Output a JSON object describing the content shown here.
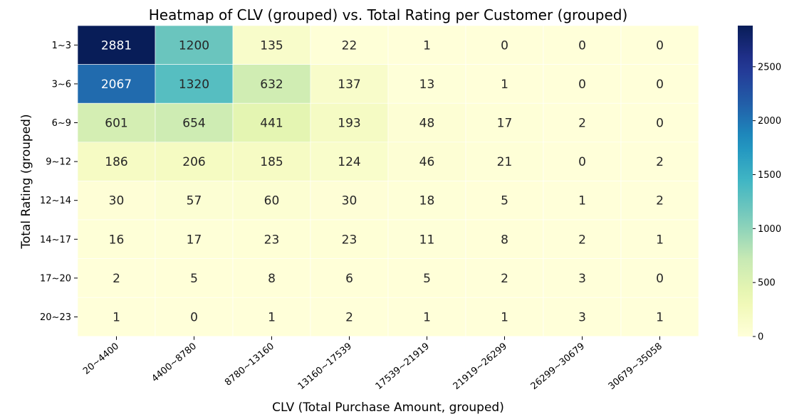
{
  "chart_data": {
    "type": "heatmap",
    "title": "Heatmap of CLV (grouped) vs. Total Rating per Customer (grouped)",
    "xlabel": "CLV (Total Purchase Amount, grouped)",
    "ylabel": "Total Rating (grouped)",
    "x_categories": [
      "20~4400",
      "4400~8780",
      "8780~13160",
      "13160~17539",
      "17539~21919",
      "21919~26299",
      "26299~30679",
      "30679~35058"
    ],
    "y_categories": [
      "1~3",
      "3~6",
      "6~9",
      "9~12",
      "12~14",
      "14~17",
      "17~20",
      "20~23"
    ],
    "values": [
      [
        2881,
        1200,
        135,
        22,
        1,
        0,
        0,
        0
      ],
      [
        2067,
        1320,
        632,
        137,
        13,
        1,
        0,
        0
      ],
      [
        601,
        654,
        441,
        193,
        48,
        17,
        2,
        0
      ],
      [
        186,
        206,
        185,
        124,
        46,
        21,
        0,
        2
      ],
      [
        30,
        57,
        60,
        30,
        18,
        5,
        1,
        2
      ],
      [
        16,
        17,
        23,
        23,
        11,
        8,
        2,
        1
      ],
      [
        2,
        5,
        8,
        6,
        5,
        2,
        3,
        0
      ],
      [
        1,
        0,
        1,
        2,
        1,
        1,
        3,
        1
      ]
    ],
    "colormap": "YlGnBu",
    "colorbar": {
      "range": [
        0,
        2881
      ],
      "ticks": [
        0,
        500,
        1000,
        1500,
        2000,
        2500
      ]
    },
    "annotations": true,
    "grid": true
  }
}
